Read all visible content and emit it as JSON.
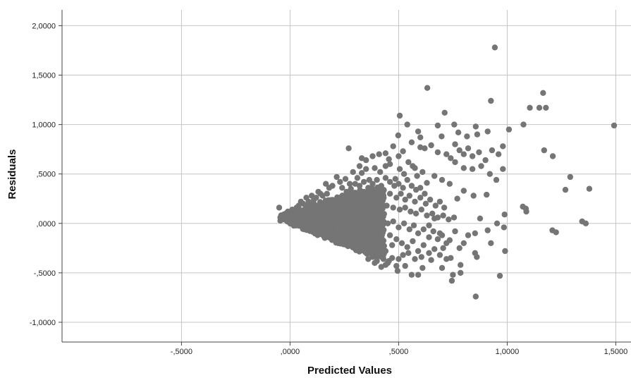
{
  "chart_data": {
    "type": "scatter",
    "title": "",
    "xlabel": "Predicted Values",
    "ylabel": "Residuals",
    "xlim": [
      -1.05,
      1.57
    ],
    "ylim": [
      -1.2,
      2.16
    ],
    "grid": true,
    "marker_color": "#757575",
    "x_ticks": [
      {
        "value": -0.5,
        "label": "-,5000"
      },
      {
        "value": 0.0,
        "label": ",0000"
      },
      {
        "value": 0.5,
        "label": ",5000"
      },
      {
        "value": 1.0,
        "label": "1,0000"
      },
      {
        "value": 1.5,
        "label": "1,5000"
      }
    ],
    "y_ticks": [
      {
        "value": -1.0,
        "label": "-1,0000"
      },
      {
        "value": -0.5,
        "label": "-,5000"
      },
      {
        "value": 0.0,
        "label": ",0000"
      },
      {
        "value": 0.5,
        "label": ",5000"
      },
      {
        "value": 1.0,
        "label": "1,0000"
      },
      {
        "value": 1.5,
        "label": "1,5000"
      },
      {
        "value": 2.0,
        "label": "2,0000"
      }
    ],
    "points": [
      [
        0.943,
        1.78
      ],
      [
        0.632,
        1.37
      ],
      [
        0.925,
        1.24
      ],
      [
        1.165,
        1.32
      ],
      [
        1.104,
        1.17
      ],
      [
        1.148,
        1.17
      ],
      [
        1.178,
        1.17
      ],
      [
        1.492,
        0.99
      ],
      [
        1.008,
        0.95
      ],
      [
        1.075,
        1.0
      ],
      [
        0.712,
        1.12
      ],
      [
        0.505,
        1.09
      ],
      [
        0.54,
        1.0
      ],
      [
        0.68,
        0.99
      ],
      [
        0.756,
        1.0
      ],
      [
        0.855,
        0.98
      ],
      [
        0.498,
        0.89
      ],
      [
        0.6,
        0.87
      ],
      [
        0.698,
        0.88
      ],
      [
        0.775,
        0.92
      ],
      [
        0.815,
        0.88
      ],
      [
        0.91,
        0.93
      ],
      [
        0.862,
        0.9
      ],
      [
        0.59,
        0.93
      ],
      [
        0.32,
        0.58
      ],
      [
        0.27,
        0.76
      ],
      [
        0.33,
        0.66
      ],
      [
        0.35,
        0.64
      ],
      [
        0.38,
        0.68
      ],
      [
        0.41,
        0.7
      ],
      [
        0.44,
        0.71
      ],
      [
        0.455,
        0.65
      ],
      [
        0.475,
        0.78
      ],
      [
        0.5,
        0.68
      ],
      [
        0.52,
        0.73
      ],
      [
        0.56,
        0.82
      ],
      [
        0.6,
        0.77
      ],
      [
        0.62,
        0.76
      ],
      [
        0.65,
        0.79
      ],
      [
        0.68,
        0.72
      ],
      [
        0.72,
        0.7
      ],
      [
        0.74,
        0.66
      ],
      [
        0.76,
        0.8
      ],
      [
        0.78,
        0.74
      ],
      [
        0.8,
        0.7
      ],
      [
        0.82,
        0.76
      ],
      [
        0.84,
        0.68
      ],
      [
        0.87,
        0.72
      ],
      [
        0.9,
        0.64
      ],
      [
        0.93,
        0.74
      ],
      [
        0.96,
        0.7
      ],
      [
        0.98,
        0.78
      ],
      [
        1.17,
        0.74
      ],
      [
        1.21,
        0.68
      ],
      [
        1.29,
        0.47
      ],
      [
        1.268,
        0.34
      ],
      [
        1.378,
        0.35
      ],
      [
        0.76,
        0.62
      ],
      [
        0.8,
        0.56
      ],
      [
        0.84,
        0.55
      ],
      [
        0.88,
        0.58
      ],
      [
        0.92,
        0.5
      ],
      [
        0.95,
        0.44
      ],
      [
        0.98,
        0.55
      ],
      [
        0.905,
        0.29
      ],
      [
        0.845,
        0.28
      ],
      [
        0.8,
        0.33
      ],
      [
        0.77,
        0.25
      ],
      [
        0.735,
        0.4
      ],
      [
        0.7,
        0.44
      ],
      [
        0.665,
        0.48
      ],
      [
        0.63,
        0.41
      ],
      [
        0.61,
        0.52
      ],
      [
        0.575,
        0.56
      ],
      [
        1.072,
        0.17
      ],
      [
        1.086,
        0.15
      ],
      [
        1.088,
        0.12
      ],
      [
        1.208,
        -0.07
      ],
      [
        1.225,
        -0.09
      ],
      [
        1.345,
        0.02
      ],
      [
        1.362,
        0.0
      ],
      [
        0.988,
        0.09
      ],
      [
        0.953,
        0.0
      ],
      [
        0.91,
        -0.07
      ],
      [
        0.875,
        0.05
      ],
      [
        0.852,
        -0.1
      ],
      [
        0.82,
        -0.12
      ],
      [
        0.8,
        -0.2
      ],
      [
        0.78,
        -0.25
      ],
      [
        0.76,
        -0.08
      ],
      [
        0.735,
        -0.17
      ],
      [
        0.705,
        -0.25
      ],
      [
        0.69,
        -0.1
      ],
      [
        0.665,
        0.05
      ],
      [
        0.64,
        -0.02
      ],
      [
        0.852,
        -0.3
      ],
      [
        0.86,
        -0.34
      ],
      [
        0.925,
        -0.2
      ],
      [
        0.985,
        -0.04
      ],
      [
        0.99,
        -0.28
      ],
      [
        0.785,
        -0.42
      ],
      [
        0.74,
        -0.35
      ],
      [
        0.72,
        -0.36
      ],
      [
        0.7,
        -0.45
      ],
      [
        0.65,
        -0.37
      ],
      [
        0.61,
        -0.45
      ],
      [
        0.59,
        -0.52
      ],
      [
        0.56,
        -0.52
      ],
      [
        0.53,
        -0.43
      ],
      [
        0.49,
        -0.43
      ],
      [
        0.495,
        -0.48
      ],
      [
        0.745,
        -0.58
      ],
      [
        0.75,
        -0.52
      ],
      [
        0.785,
        -0.5
      ],
      [
        0.966,
        -0.53
      ],
      [
        0.855,
        -0.74
      ],
      [
        0.455,
        -0.38
      ],
      [
        0.47,
        -0.35
      ],
      [
        0.43,
        -0.36
      ],
      [
        0.4,
        -0.38
      ],
      [
        0.44,
        -0.42
      ],
      [
        0.5,
        -0.36
      ],
      [
        0.52,
        -0.32
      ],
      [
        0.29,
        0.52
      ],
      [
        0.31,
        0.46
      ],
      [
        0.33,
        0.51
      ],
      [
        0.35,
        0.55
      ],
      [
        0.365,
        0.44
      ],
      [
        0.39,
        0.56
      ],
      [
        0.415,
        0.52
      ],
      [
        0.44,
        0.58
      ],
      [
        0.46,
        0.6
      ],
      [
        0.485,
        0.45
      ],
      [
        0.505,
        0.55
      ],
      [
        0.525,
        0.5
      ],
      [
        0.545,
        0.62
      ],
      [
        0.565,
        0.58
      ],
      [
        0.585,
        0.48
      ],
      [
        0.215,
        0.47
      ],
      [
        0.23,
        0.42
      ],
      [
        0.255,
        0.45
      ],
      [
        0.275,
        0.4
      ],
      [
        0.3,
        0.4
      ],
      [
        0.32,
        0.38
      ],
      [
        0.34,
        0.42
      ],
      [
        0.36,
        0.36
      ],
      [
        0.38,
        0.4
      ],
      [
        0.4,
        0.44
      ],
      [
        0.42,
        0.38
      ],
      [
        0.44,
        0.46
      ],
      [
        0.46,
        0.42
      ],
      [
        0.48,
        0.38
      ],
      [
        0.5,
        0.4
      ],
      [
        0.52,
        0.36
      ],
      [
        0.54,
        0.44
      ],
      [
        0.56,
        0.38
      ],
      [
        0.58,
        0.34
      ],
      [
        0.6,
        0.36
      ],
      [
        0.62,
        0.3
      ],
      [
        0.18,
        0.36
      ],
      [
        0.195,
        0.38
      ],
      [
        0.165,
        0.4
      ],
      [
        0.24,
        0.36
      ],
      [
        0.26,
        0.32
      ],
      [
        0.28,
        0.35
      ],
      [
        0.3,
        0.31
      ],
      [
        0.34,
        0.32
      ],
      [
        0.37,
        0.3
      ],
      [
        0.4,
        0.32
      ],
      [
        0.43,
        0.28
      ],
      [
        0.46,
        0.3
      ],
      [
        0.49,
        0.26
      ],
      [
        0.51,
        0.3
      ],
      [
        0.53,
        0.24
      ],
      [
        0.55,
        0.28
      ],
      [
        0.575,
        0.22
      ],
      [
        0.6,
        0.26
      ],
      [
        0.625,
        0.2
      ],
      [
        0.645,
        0.24
      ],
      [
        0.67,
        0.18
      ],
      [
        0.69,
        0.22
      ],
      [
        0.71,
        0.16
      ],
      [
        0.13,
        0.32
      ],
      [
        0.14,
        0.3
      ],
      [
        0.15,
        0.28
      ],
      [
        0.17,
        0.3
      ],
      [
        0.1,
        0.28
      ],
      [
        0.11,
        0.24
      ],
      [
        0.12,
        0.26
      ],
      [
        0.085,
        0.22
      ],
      [
        0.075,
        0.26
      ],
      [
        0.095,
        0.2
      ],
      [
        0.06,
        0.2
      ],
      [
        0.05,
        0.22
      ],
      [
        0.04,
        0.18
      ],
      [
        0.03,
        0.16
      ],
      [
        0.415,
        0.2
      ],
      [
        0.445,
        0.18
      ],
      [
        0.475,
        0.16
      ],
      [
        0.505,
        0.14
      ],
      [
        0.53,
        0.16
      ],
      [
        0.555,
        0.12
      ],
      [
        0.58,
        0.1
      ],
      [
        0.605,
        0.14
      ],
      [
        0.63,
        0.08
      ],
      [
        0.655,
        0.1
      ],
      [
        0.68,
        0.06
      ],
      [
        0.705,
        0.08
      ],
      [
        0.73,
        0.04
      ],
      [
        0.755,
        0.06
      ],
      [
        0.42,
        0.04
      ],
      [
        0.45,
        0.0
      ],
      [
        0.475,
        0.02
      ],
      [
        0.5,
        -0.04
      ],
      [
        0.525,
        0.0
      ],
      [
        0.55,
        -0.06
      ],
      [
        0.57,
        -0.02
      ],
      [
        0.59,
        -0.1
      ],
      [
        0.615,
        -0.06
      ],
      [
        0.64,
        -0.14
      ],
      [
        0.66,
        -0.08
      ],
      [
        0.68,
        -0.16
      ],
      [
        0.7,
        -0.12
      ],
      [
        0.72,
        -0.2
      ],
      [
        0.46,
        -0.12
      ],
      [
        0.49,
        -0.16
      ],
      [
        0.515,
        -0.2
      ],
      [
        0.54,
        -0.24
      ],
      [
        0.565,
        -0.18
      ],
      [
        0.59,
        -0.28
      ],
      [
        0.615,
        -0.22
      ],
      [
        0.64,
        -0.3
      ],
      [
        0.665,
        -0.26
      ],
      [
        0.69,
        -0.32
      ],
      [
        0.545,
        -0.3
      ],
      [
        0.575,
        -0.36
      ],
      [
        0.605,
        -0.34
      ],
      [
        -0.05,
        0.16
      ],
      [
        -0.045,
        0.06
      ],
      [
        -0.04,
        0.04
      ],
      [
        -0.03,
        0.08
      ],
      [
        -0.02,
        0.1
      ],
      [
        -0.01,
        0.12
      ],
      [
        0.0,
        0.1
      ],
      [
        0.01,
        0.14
      ],
      [
        0.36,
        -0.36
      ],
      [
        0.38,
        -0.34
      ],
      [
        0.41,
        -0.3
      ],
      [
        0.44,
        -0.28
      ],
      [
        0.47,
        -0.22
      ],
      [
        0.39,
        -0.4
      ],
      [
        0.42,
        -0.44
      ],
      [
        0.45,
        -0.4
      ]
    ],
    "dense_region": {
      "description_points": "band",
      "x_min": -0.04,
      "x_max": 0.44,
      "upper": [
        [
          -0.04,
          0.08
        ],
        [
          0.06,
          0.16
        ],
        [
          0.14,
          0.22
        ],
        [
          0.22,
          0.28
        ],
        [
          0.3,
          0.32
        ],
        [
          0.38,
          0.36
        ],
        [
          0.44,
          0.38
        ]
      ],
      "lower": [
        [
          -0.04,
          0.04
        ],
        [
          0.06,
          -0.05
        ],
        [
          0.14,
          -0.12
        ],
        [
          0.22,
          -0.19
        ],
        [
          0.3,
          -0.26
        ],
        [
          0.38,
          -0.31
        ],
        [
          0.44,
          -0.35
        ]
      ]
    }
  }
}
